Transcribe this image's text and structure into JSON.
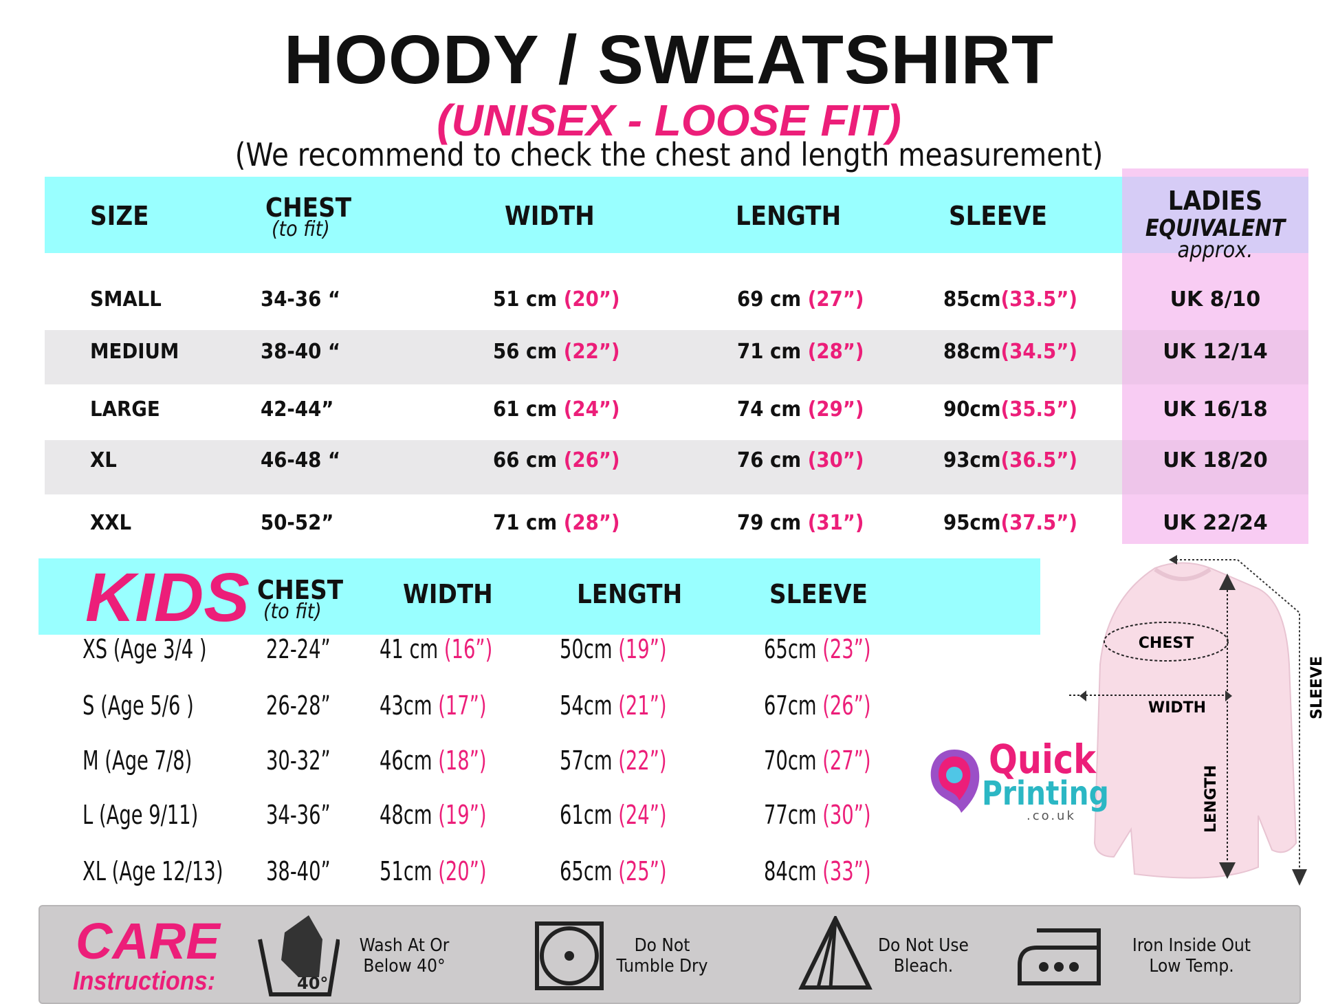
{
  "title": "HOODY / SWEATSHIRT",
  "subtitle": "(UNISEX - LOOSE FIT)",
  "recommendation": "(We recommend to check the chest and length measurement)",
  "adult": {
    "headers": {
      "size": "SIZE",
      "chest": "CHEST",
      "chest_note": "(to fit)",
      "width": "WIDTH",
      "length": "LENGTH",
      "sleeve": "SLEEVE",
      "ladies": "LADIES",
      "ladies_sub": "EQUIVALENT",
      "ladies_note": "approx."
    },
    "rows": [
      {
        "size": "SMALL",
        "chest": "34-36 “",
        "width_cm": "51 cm",
        "width_in": "(20”)",
        "length_cm": "69 cm",
        "length_in": "(27”)",
        "sleeve_cm": "85cm",
        "sleeve_in": "(33.5”)",
        "ladies": "UK 8/10"
      },
      {
        "size": "MEDIUM",
        "chest": "38-40 “",
        "width_cm": "56 cm",
        "width_in": "(22”)",
        "length_cm": "71 cm",
        "length_in": "(28”)",
        "sleeve_cm": "88cm",
        "sleeve_in": "(34.5”)",
        "ladies": "UK 12/14"
      },
      {
        "size": "LARGE",
        "chest": "42-44”",
        "width_cm": "61 cm",
        "width_in": "(24”)",
        "length_cm": "74 cm",
        "length_in": "(29”)",
        "sleeve_cm": "90cm",
        "sleeve_in": "(35.5”)",
        "ladies": "UK 16/18"
      },
      {
        "size": "XL",
        "chest": "46-48 “",
        "width_cm": "66 cm",
        "width_in": "(26”)",
        "length_cm": "76 cm",
        "length_in": "(30”)",
        "sleeve_cm": "93cm",
        "sleeve_in": "(36.5”)",
        "ladies": "UK 18/20"
      },
      {
        "size": "XXL",
        "chest": "50-52”",
        "width_cm": "71 cm",
        "width_in": "(28”)",
        "length_cm": "79 cm",
        "length_in": "(31”)",
        "sleeve_cm": "95cm",
        "sleeve_in": "(37.5”)",
        "ladies": "UK 22/24"
      }
    ]
  },
  "kids": {
    "headers": {
      "kids": "KIDS",
      "chest": "CHEST",
      "chest_note": "(to fit)",
      "width": "WIDTH",
      "length": "LENGTH",
      "sleeve": "SLEEVE"
    },
    "rows": [
      {
        "size": "XS (Age 3/4 )",
        "chest": "22-24”",
        "width_cm": "41 cm",
        "width_in": "(16”)",
        "length_cm": "50cm",
        "length_in": "(19”)",
        "sleeve_cm": "65cm",
        "sleeve_in": "(23”)"
      },
      {
        "size": "S (Age 5/6 )",
        "chest": "26-28”",
        "width_cm": "43cm",
        "width_in": "(17”)",
        "length_cm": "54cm",
        "length_in": "(21”)",
        "sleeve_cm": "67cm",
        "sleeve_in": "(26”)"
      },
      {
        "size": "M (Age 7/8)",
        "chest": "30-32”",
        "width_cm": "46cm",
        "width_in": "(18”)",
        "length_cm": "57cm",
        "length_in": "(22”)",
        "sleeve_cm": "70cm",
        "sleeve_in": "(27”)"
      },
      {
        "size": "L (Age 9/11)",
        "chest": "34-36”",
        "width_cm": "48cm",
        "width_in": "(19”)",
        "length_cm": "61cm",
        "length_in": "(24”)",
        "sleeve_cm": "77cm",
        "sleeve_in": "(30”)"
      },
      {
        "size": "XL (Age 12/13)",
        "chest": "38-40”",
        "width_cm": "51cm",
        "width_in": "(20”)",
        "length_cm": "65cm",
        "length_in": "(25”)",
        "sleeve_cm": "84cm",
        "sleeve_in": "(33”)"
      }
    ]
  },
  "diagram": {
    "chest": "CHEST",
    "width": "WIDTH",
    "length": "LENGTH",
    "sleeve": "SLEEVE"
  },
  "logo": {
    "line1": "Quick",
    "line2": "Printing",
    "line3": ".co.uk"
  },
  "care": {
    "title": "CARE",
    "subtitle": "Instructions:",
    "items": [
      {
        "icon": "wash-40-icon",
        "line1": "Wash At Or",
        "line2": "Below 40°",
        "badge": "40°"
      },
      {
        "icon": "no-tumble-dry-icon",
        "line1": "Do  Not",
        "line2": "Tumble Dry"
      },
      {
        "icon": "no-bleach-icon",
        "line1": "Do Not Use",
        "line2": "Bleach."
      },
      {
        "icon": "iron-low-icon",
        "line1": "Iron Inside Out",
        "line2": "Low Temp."
      }
    ]
  },
  "colors": {
    "accent_pink": "#ec1e79",
    "header_cyan": "#99ffff",
    "ladies_pink": "#f8ccf3",
    "ladies_header": "#d6ccf6",
    "row_gray": "#e9e8ea",
    "care_gray": "#cdcbcc"
  }
}
